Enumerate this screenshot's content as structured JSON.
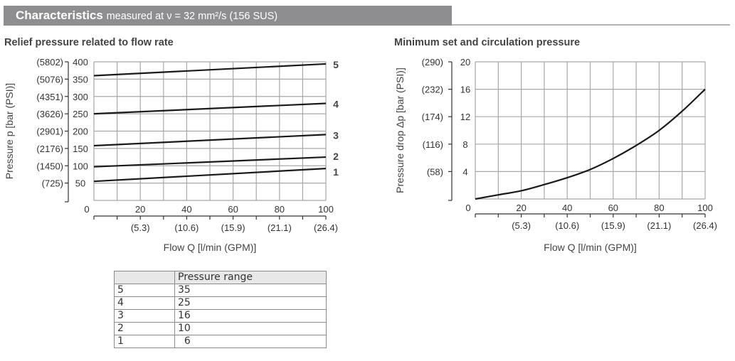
{
  "header": {
    "title": "Characteristics",
    "subtitle": "measured at ν = 32 mm²/s (156 SUS)",
    "bar_color": "#8e8e90"
  },
  "chart_data": [
    {
      "type": "line",
      "title": "Relief pressure related to flow rate",
      "xlabel": "Flow Q [l/min (GPM)]",
      "ylabel": "Pressure p [bar (PSI)]",
      "xlim": [
        0,
        100
      ],
      "ylim": [
        0,
        400
      ],
      "grid": true,
      "x_ticks": [
        {
          "value": 0,
          "label": "0",
          "sub": ""
        },
        {
          "value": 20,
          "label": "20",
          "sub": "(5.3)"
        },
        {
          "value": 40,
          "label": "40",
          "sub": "(10.6)"
        },
        {
          "value": 60,
          "label": "60",
          "sub": "(15.9)"
        },
        {
          "value": 80,
          "label": "80",
          "sub": "(21.1)"
        },
        {
          "value": 100,
          "label": "100",
          "sub": "(26.4)"
        }
      ],
      "y_ticks": [
        {
          "value": 0,
          "label": "0",
          "psi": ""
        },
        {
          "value": 50,
          "label": "50",
          "psi": "(725)"
        },
        {
          "value": 100,
          "label": "100",
          "psi": "(1450)"
        },
        {
          "value": 150,
          "label": "150",
          "psi": "(2176)"
        },
        {
          "value": 200,
          "label": "200",
          "psi": "(2901)"
        },
        {
          "value": 250,
          "label": "250",
          "psi": "(3626)"
        },
        {
          "value": 300,
          "label": "300",
          "psi": "(4351)"
        },
        {
          "value": 350,
          "label": "350",
          "psi": "(5076)"
        },
        {
          "value": 400,
          "label": "400",
          "psi": "(5802)"
        }
      ],
      "x": [
        0,
        100
      ],
      "series": [
        {
          "name": "5",
          "values": [
            360,
            394
          ]
        },
        {
          "name": "4",
          "values": [
            250,
            280
          ]
        },
        {
          "name": "3",
          "values": [
            158,
            190
          ]
        },
        {
          "name": "2",
          "values": [
            97,
            125
          ]
        },
        {
          "name": "1",
          "values": [
            55,
            92
          ]
        }
      ]
    },
    {
      "type": "line",
      "title": "Minimum set and circulation pressure",
      "xlabel": "Flow Q [l/min (GPM)]",
      "ylabel": "Pressure drop Δp [bar (PSI)]",
      "xlim": [
        0,
        100
      ],
      "ylim": [
        0,
        20
      ],
      "grid": true,
      "x_ticks": [
        {
          "value": 0,
          "label": "0",
          "sub": ""
        },
        {
          "value": 20,
          "label": "20",
          "sub": "(5.3)"
        },
        {
          "value": 40,
          "label": "40",
          "sub": "(10.6)"
        },
        {
          "value": 60,
          "label": "60",
          "sub": "(15.9)"
        },
        {
          "value": 80,
          "label": "80",
          "sub": "(21.1)"
        },
        {
          "value": 100,
          "label": "100",
          "sub": "(26.4)"
        }
      ],
      "y_ticks": [
        {
          "value": 0,
          "label": "0",
          "psi": ""
        },
        {
          "value": 4,
          "label": "4",
          "psi": "(58)"
        },
        {
          "value": 8,
          "label": "8",
          "psi": "(116)"
        },
        {
          "value": 12,
          "label": "12",
          "psi": "(174)"
        },
        {
          "value": 16,
          "label": "16",
          "psi": "(232)"
        },
        {
          "value": 20,
          "label": "20",
          "psi": "(290)"
        }
      ],
      "x": [
        0,
        10,
        20,
        30,
        40,
        50,
        60,
        70,
        80,
        90,
        100
      ],
      "series": [
        {
          "name": "Δp",
          "values": [
            0,
            0.6,
            1.2,
            2.1,
            3.1,
            4.3,
            5.9,
            7.8,
            10.0,
            12.8,
            16.0
          ]
        }
      ]
    }
  ],
  "table": {
    "header": [
      "",
      "Pressure range"
    ],
    "rows": [
      [
        "5",
        "35"
      ],
      [
        "4",
        "25"
      ],
      [
        "3",
        "16"
      ],
      [
        "2",
        "10"
      ],
      [
        "1",
        "  6"
      ]
    ]
  }
}
